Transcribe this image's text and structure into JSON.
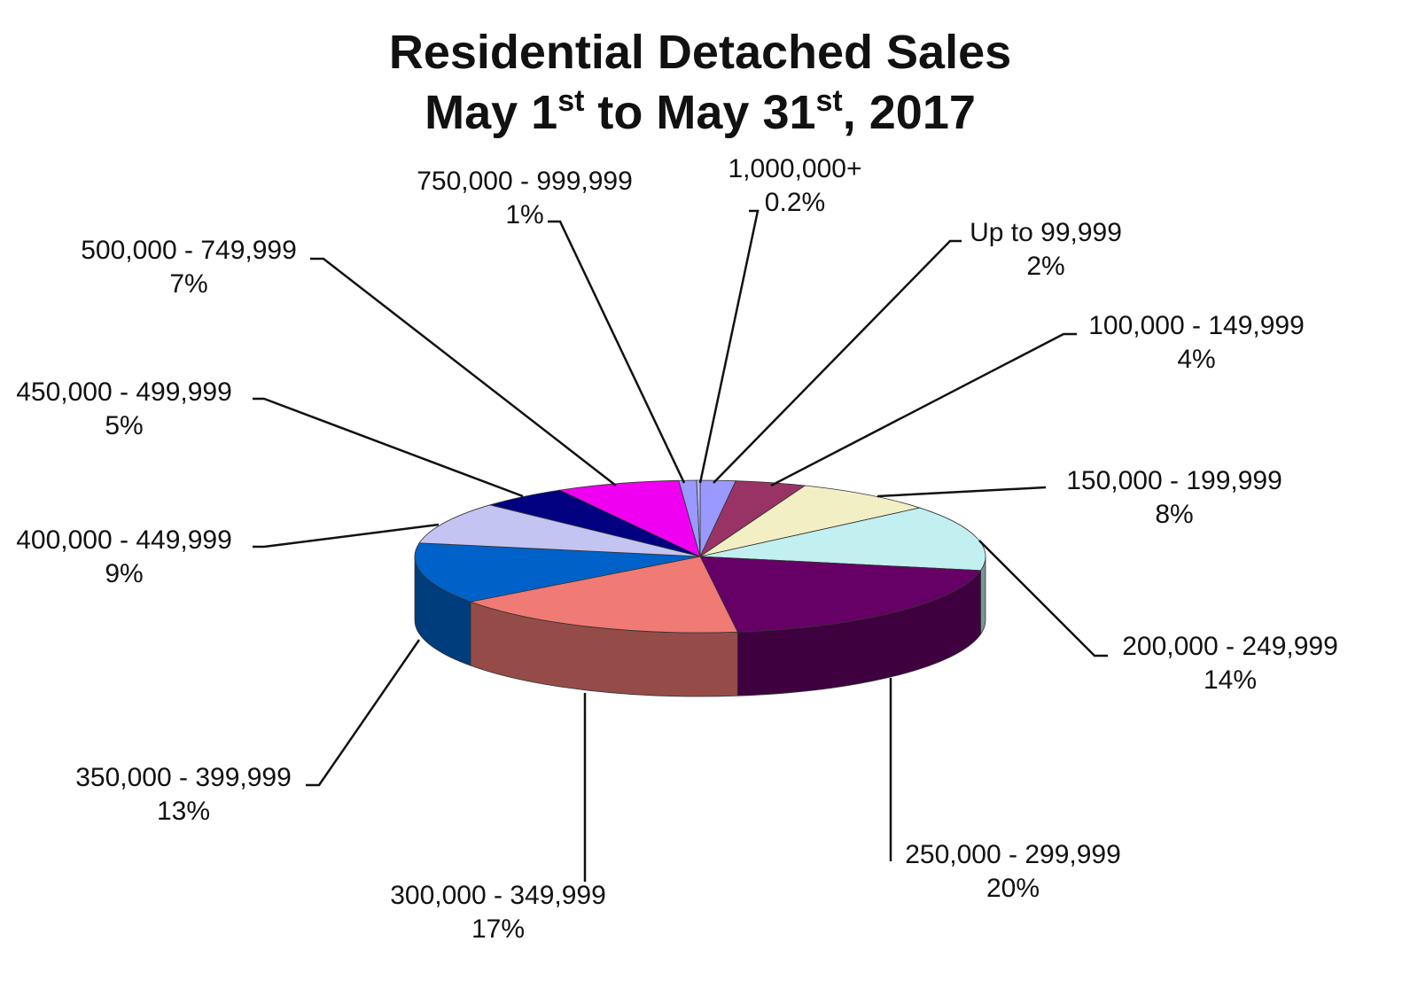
{
  "chart_data": {
    "type": "pie3d",
    "title": "Residential Detached Sales",
    "subtitle": [
      {
        "text": "May 1"
      },
      {
        "text": "st",
        "sup": true
      },
      {
        "text": " to May 31"
      },
      {
        "text": "st",
        "sup": true
      },
      {
        "text": ", 2017"
      }
    ],
    "categories": [
      "Up to 99,999",
      "100,000 - 149,999",
      "150,000 - 199,999",
      "200,000 - 249,999",
      "250,000 - 299,999",
      "300,000 - 349,999",
      "350,000 - 399,999",
      "400,000 - 449,999",
      "450,000 - 499,999",
      "500,000 - 749,999",
      "750,000 - 999,999",
      "1,000,000+"
    ],
    "values": [
      2,
      4,
      8,
      14,
      20,
      17,
      13,
      9,
      5,
      7,
      1,
      0.2
    ],
    "value_labels": [
      "2%",
      "4%",
      "8%",
      "14%",
      "20%",
      "17%",
      "13%",
      "9%",
      "5%",
      "7%",
      "1%",
      "0.2%"
    ],
    "colors": [
      "#9999ff",
      "#993366",
      "#f2efc4",
      "#c2f0f0",
      "#660066",
      "#f07a74",
      "#0062c8",
      "#c4c4f2",
      "#000080",
      "#f000f0",
      "#9999ff",
      "#b8b8ff"
    ]
  }
}
